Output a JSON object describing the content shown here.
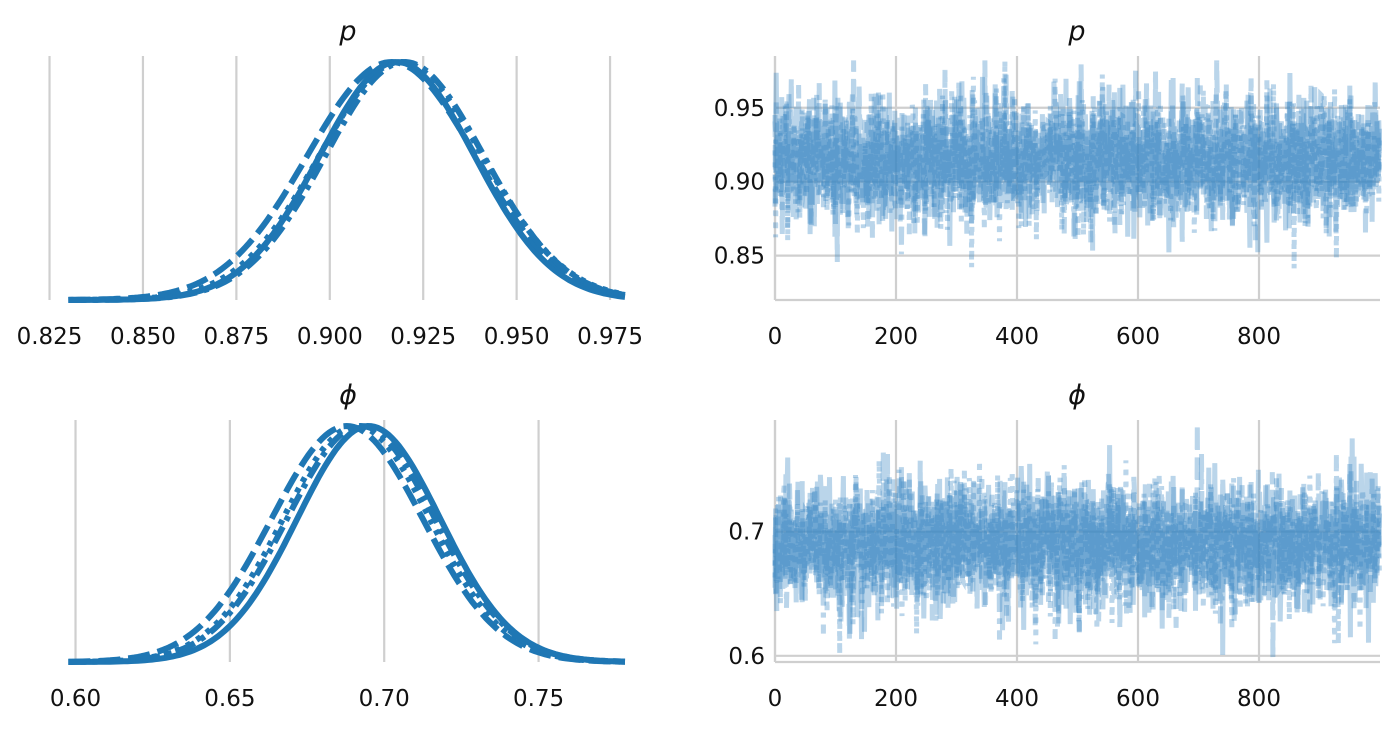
{
  "colors": {
    "series": "#1f77b4",
    "trace": "#3a87c2",
    "grid": "#cfcfcf"
  },
  "chart_data": [
    {
      "type": "line",
      "panel": "density",
      "title": "p",
      "xlim": [
        0.827,
        0.979
      ],
      "xticks": [
        0.825,
        0.85,
        0.875,
        0.9,
        0.925,
        0.95,
        0.975
      ],
      "xtick_labels": [
        "0.825",
        "0.850",
        "0.875",
        "0.900",
        "0.925",
        "0.950",
        "0.975"
      ],
      "grid": "vertical",
      "chains": [
        {
          "style": "solid",
          "mean": 0.918,
          "sd": 0.0207
        },
        {
          "style": "dashed",
          "mean": 0.9165,
          "sd": 0.0225
        },
        {
          "style": "dotted",
          "mean": 0.919,
          "sd": 0.0218
        },
        {
          "style": "dashdot",
          "mean": 0.92,
          "sd": 0.0212
        }
      ]
    },
    {
      "type": "line",
      "panel": "trace",
      "title": "p",
      "xlim": [
        0,
        1000
      ],
      "xticks": [
        0,
        200,
        400,
        600,
        800
      ],
      "xtick_labels": [
        "0",
        "200",
        "400",
        "600",
        "800"
      ],
      "ylim": [
        0.82,
        0.985
      ],
      "yticks": [
        0.85,
        0.9,
        0.95
      ],
      "ytick_labels": [
        "0.85",
        "0.90",
        "0.95"
      ],
      "grid": "both",
      "n_draws": 1000,
      "center": 0.915,
      "spread": 0.021
    },
    {
      "type": "line",
      "panel": "density",
      "title": "ϕ",
      "xlim": [
        0.594,
        0.778
      ],
      "xticks": [
        0.6,
        0.65,
        0.7,
        0.75
      ],
      "xtick_labels": [
        "0.60",
        "0.65",
        "0.70",
        "0.75"
      ],
      "grid": "vertical",
      "chains": [
        {
          "style": "solid",
          "mean": 0.695,
          "sd": 0.0232
        },
        {
          "style": "dashed",
          "mean": 0.688,
          "sd": 0.0245
        },
        {
          "style": "dotted",
          "mean": 0.691,
          "sd": 0.0238
        },
        {
          "style": "dashdot",
          "mean": 0.6925,
          "sd": 0.024
        }
      ]
    },
    {
      "type": "line",
      "panel": "trace",
      "title": "ϕ",
      "xlim": [
        0,
        1000
      ],
      "xticks": [
        0,
        200,
        400,
        600,
        800
      ],
      "xtick_labels": [
        "0",
        "200",
        "400",
        "600",
        "800"
      ],
      "ylim": [
        0.595,
        0.79
      ],
      "yticks": [
        0.6,
        0.7
      ],
      "ytick_labels": [
        "0.6",
        "0.7"
      ],
      "grid": "both",
      "n_draws": 1000,
      "center": 0.69,
      "spread": 0.025
    }
  ]
}
